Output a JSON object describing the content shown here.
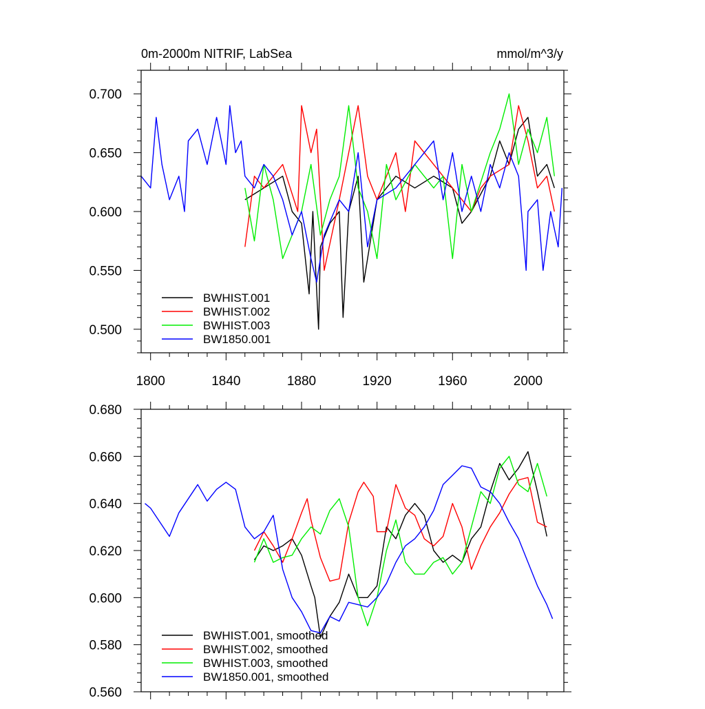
{
  "chart_data": [
    {
      "id": "raw",
      "type": "line",
      "title": "0m-2000m NITRIF, LabSea",
      "units_label": "mmol/m^3/y",
      "xlabel": "",
      "ylabel": "",
      "xlim": [
        1795,
        2019
      ],
      "ylim": [
        0.48,
        0.72
      ],
      "x_ticks": [
        1800,
        1840,
        1880,
        1920,
        1960,
        2000
      ],
      "x_tick_labels": [
        "1800",
        "1840",
        "1880",
        "1920",
        "1960",
        "2000"
      ],
      "y_ticks": [
        0.5,
        0.55,
        0.6,
        0.65,
        0.7
      ],
      "y_tick_labels": [
        "0.500",
        "0.550",
        "0.600",
        "0.650",
        "0.700"
      ],
      "legend_position": "bottom-left",
      "series": [
        {
          "name": "BWHIST.001",
          "color": "#000000",
          "x": [
            1850,
            1860,
            1870,
            1875,
            1880,
            1884,
            1886,
            1889,
            1890,
            1895,
            1900,
            1902,
            1905,
            1910,
            1913,
            1920,
            1930,
            1940,
            1950,
            1960,
            1965,
            1970,
            1980,
            1985,
            1990,
            1995,
            2000,
            2005,
            2010,
            2014
          ],
          "y": [
            0.61,
            0.62,
            0.63,
            0.6,
            0.59,
            0.53,
            0.6,
            0.5,
            0.57,
            0.59,
            0.6,
            0.51,
            0.6,
            0.63,
            0.54,
            0.61,
            0.63,
            0.62,
            0.63,
            0.62,
            0.59,
            0.6,
            0.63,
            0.66,
            0.64,
            0.67,
            0.68,
            0.63,
            0.64,
            0.62
          ]
        },
        {
          "name": "BWHIST.002",
          "color": "#ff0000",
          "x": [
            1850,
            1855,
            1860,
            1870,
            1878,
            1880,
            1885,
            1888,
            1892,
            1900,
            1910,
            1915,
            1920,
            1930,
            1935,
            1940,
            1950,
            1960,
            1970,
            1975,
            1980,
            1990,
            1995,
            2000,
            2005,
            2010,
            2014
          ],
          "y": [
            0.57,
            0.63,
            0.62,
            0.64,
            0.6,
            0.69,
            0.65,
            0.67,
            0.55,
            0.61,
            0.69,
            0.63,
            0.61,
            0.65,
            0.6,
            0.66,
            0.64,
            0.62,
            0.6,
            0.62,
            0.63,
            0.64,
            0.69,
            0.66,
            0.62,
            0.63,
            0.6
          ]
        },
        {
          "name": "BWHIST.003",
          "color": "#00ee00",
          "x": [
            1850,
            1855,
            1860,
            1865,
            1870,
            1880,
            1885,
            1890,
            1895,
            1900,
            1905,
            1910,
            1915,
            1920,
            1925,
            1930,
            1940,
            1950,
            1955,
            1960,
            1965,
            1970,
            1980,
            1985,
            1990,
            1995,
            2000,
            2005,
            2010,
            2014
          ],
          "y": [
            0.62,
            0.575,
            0.64,
            0.61,
            0.56,
            0.6,
            0.64,
            0.58,
            0.61,
            0.63,
            0.69,
            0.62,
            0.6,
            0.56,
            0.64,
            0.61,
            0.64,
            0.62,
            0.63,
            0.56,
            0.64,
            0.6,
            0.65,
            0.67,
            0.7,
            0.64,
            0.67,
            0.65,
            0.68,
            0.63
          ]
        },
        {
          "name": "BW1850.001",
          "color": "#0000ff",
          "x": [
            1795,
            1800,
            1803,
            1806,
            1810,
            1815,
            1818,
            1820,
            1825,
            1830,
            1835,
            1840,
            1842,
            1845,
            1848,
            1850,
            1855,
            1860,
            1865,
            1870,
            1875,
            1880,
            1885,
            1888,
            1892,
            1900,
            1905,
            1910,
            1915,
            1920,
            1930,
            1940,
            1950,
            1955,
            1960,
            1965,
            1970,
            1975,
            1980,
            1985,
            1990,
            1995,
            1999,
            2000,
            2005,
            2008,
            2012,
            2016,
            2018
          ],
          "y": [
            0.63,
            0.62,
            0.68,
            0.64,
            0.61,
            0.63,
            0.6,
            0.66,
            0.67,
            0.64,
            0.68,
            0.64,
            0.69,
            0.65,
            0.66,
            0.63,
            0.62,
            0.64,
            0.63,
            0.61,
            0.58,
            0.6,
            0.56,
            0.54,
            0.58,
            0.61,
            0.6,
            0.65,
            0.57,
            0.61,
            0.62,
            0.64,
            0.66,
            0.61,
            0.65,
            0.6,
            0.63,
            0.6,
            0.64,
            0.62,
            0.65,
            0.63,
            0.55,
            0.6,
            0.61,
            0.55,
            0.6,
            0.57,
            0.62
          ]
        }
      ]
    },
    {
      "id": "smoothed",
      "type": "line",
      "title": "",
      "xlabel": "",
      "ylabel": "",
      "xlim": [
        1795,
        2019
      ],
      "ylim": [
        0.56,
        0.68
      ],
      "x_ticks": [
        1800,
        1840,
        1880,
        1920,
        1960,
        2000
      ],
      "y_ticks": [
        0.56,
        0.58,
        0.6,
        0.62,
        0.64,
        0.66,
        0.68
      ],
      "y_tick_labels": [
        "0.560",
        "0.580",
        "0.600",
        "0.620",
        "0.640",
        "0.660",
        "0.680"
      ],
      "legend_position": "bottom-left",
      "series": [
        {
          "name": "BWHIST.001, smoothed",
          "color": "#000000",
          "x": [
            1855,
            1860,
            1865,
            1870,
            1875,
            1880,
            1885,
            1887,
            1890,
            1895,
            1900,
            1905,
            1910,
            1915,
            1920,
            1925,
            1930,
            1935,
            1940,
            1945,
            1950,
            1955,
            1960,
            1965,
            1970,
            1975,
            1980,
            1985,
            1990,
            1995,
            2000,
            2005,
            2010
          ],
          "y": [
            0.616,
            0.622,
            0.62,
            0.622,
            0.625,
            0.618,
            0.605,
            0.6,
            0.583,
            0.592,
            0.598,
            0.61,
            0.6,
            0.6,
            0.605,
            0.63,
            0.625,
            0.635,
            0.64,
            0.635,
            0.62,
            0.615,
            0.618,
            0.615,
            0.625,
            0.63,
            0.645,
            0.657,
            0.65,
            0.655,
            0.662,
            0.645,
            0.626
          ]
        },
        {
          "name": "BWHIST.002, smoothed",
          "color": "#ff0000",
          "x": [
            1855,
            1860,
            1865,
            1870,
            1875,
            1880,
            1883,
            1885,
            1890,
            1895,
            1900,
            1905,
            1910,
            1913,
            1918,
            1920,
            1925,
            1930,
            1935,
            1940,
            1945,
            1950,
            1955,
            1960,
            1965,
            1970,
            1975,
            1980,
            1985,
            1990,
            1995,
            2000,
            2005,
            2010
          ],
          "y": [
            0.62,
            0.628,
            0.622,
            0.615,
            0.625,
            0.636,
            0.642,
            0.633,
            0.617,
            0.607,
            0.608,
            0.632,
            0.645,
            0.649,
            0.643,
            0.628,
            0.628,
            0.648,
            0.638,
            0.635,
            0.625,
            0.622,
            0.626,
            0.64,
            0.63,
            0.612,
            0.622,
            0.63,
            0.636,
            0.644,
            0.65,
            0.651,
            0.632,
            0.63
          ]
        },
        {
          "name": "BWHIST.003, smoothed",
          "color": "#00ee00",
          "x": [
            1855,
            1860,
            1865,
            1870,
            1875,
            1880,
            1885,
            1890,
            1895,
            1900,
            1905,
            1910,
            1915,
            1920,
            1925,
            1930,
            1935,
            1940,
            1945,
            1950,
            1955,
            1960,
            1965,
            1970,
            1975,
            1980,
            1985,
            1990,
            1995,
            2000,
            2005,
            2010
          ],
          "y": [
            0.615,
            0.625,
            0.615,
            0.617,
            0.618,
            0.625,
            0.63,
            0.627,
            0.637,
            0.642,
            0.63,
            0.6,
            0.588,
            0.6,
            0.62,
            0.633,
            0.615,
            0.61,
            0.61,
            0.615,
            0.617,
            0.61,
            0.615,
            0.63,
            0.645,
            0.64,
            0.655,
            0.66,
            0.648,
            0.645,
            0.657,
            0.643
          ]
        },
        {
          "name": "BW1850.001, smoothed",
          "color": "#0000ff",
          "x": [
            1797,
            1800,
            1805,
            1810,
            1815,
            1820,
            1825,
            1830,
            1835,
            1840,
            1845,
            1850,
            1855,
            1860,
            1865,
            1870,
            1875,
            1880,
            1885,
            1890,
            1895,
            1900,
            1905,
            1910,
            1915,
            1920,
            1925,
            1930,
            1935,
            1940,
            1945,
            1950,
            1955,
            1960,
            1965,
            1970,
            1975,
            1980,
            1985,
            1990,
            1995,
            2000,
            2005,
            2010,
            2013
          ],
          "y": [
            0.64,
            0.638,
            0.632,
            0.626,
            0.636,
            0.642,
            0.648,
            0.641,
            0.646,
            0.649,
            0.646,
            0.63,
            0.625,
            0.628,
            0.635,
            0.612,
            0.6,
            0.594,
            0.586,
            0.585,
            0.592,
            0.59,
            0.598,
            0.597,
            0.596,
            0.6,
            0.606,
            0.615,
            0.622,
            0.625,
            0.63,
            0.637,
            0.648,
            0.652,
            0.656,
            0.655,
            0.647,
            0.645,
            0.64,
            0.632,
            0.625,
            0.615,
            0.605,
            0.597,
            0.591
          ]
        }
      ]
    }
  ]
}
